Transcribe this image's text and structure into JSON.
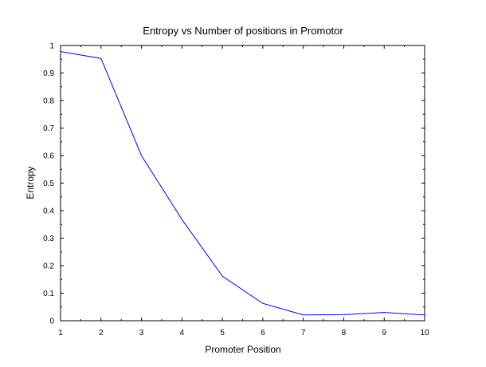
{
  "chart_data": {
    "type": "line",
    "title": "Entropy vs Number of positions in Promotor",
    "xlabel": "Promoter Position",
    "ylabel": "Entropy",
    "xlim": [
      1,
      10
    ],
    "ylim": [
      0,
      1
    ],
    "x_ticks": [
      "1",
      "2",
      "3",
      "4",
      "5",
      "6",
      "7",
      "8",
      "9",
      "10"
    ],
    "y_ticks": [
      "0",
      "0.1",
      "0.2",
      "0.3",
      "0.4",
      "0.5",
      "0.6",
      "0.7",
      "0.8",
      "0.9",
      "1"
    ],
    "grid": false,
    "series": [
      {
        "color": "#0000ff",
        "x": [
          1,
          2,
          3,
          4,
          5,
          6,
          7,
          8,
          9,
          10
        ],
        "values": [
          0.978,
          0.953,
          0.6,
          0.368,
          0.162,
          0.063,
          0.021,
          0.022,
          0.03,
          0.021
        ]
      }
    ]
  }
}
